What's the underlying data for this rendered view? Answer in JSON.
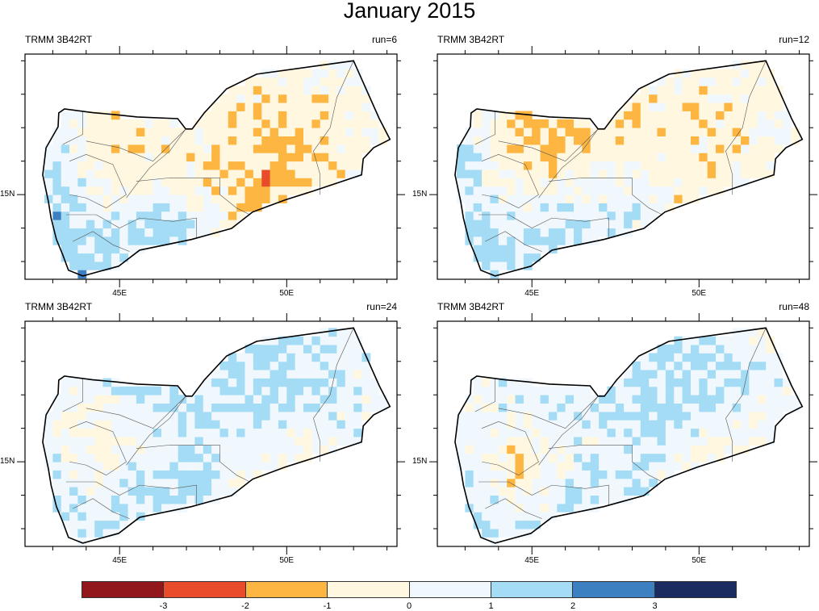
{
  "title": "January 2015",
  "chart_data": {
    "type": "heatmap",
    "title": "January 2015",
    "xaxis": {
      "ticks": [
        "45E",
        "50E"
      ],
      "range_lon": [
        42.17,
        53.3
      ]
    },
    "yaxis": {
      "ticks": [
        "15N"
      ],
      "range_lat": [
        12.47,
        19.2
      ]
    },
    "colorbar": {
      "levels": [
        "-3",
        "-2",
        "-1",
        "0",
        "1",
        "2",
        "3"
      ],
      "level_values": [
        -3,
        -2,
        -1,
        0,
        1,
        2,
        3
      ],
      "colors": [
        "#92171c",
        "#e84c2b",
        "#fdb642",
        "#fff7e0",
        "#f0f8fd",
        "#a5dcf5",
        "#3d80c2",
        "#1b2c60"
      ]
    },
    "grid_lons": [
      42.5,
      43.5,
      44.5,
      45.5,
      46.5,
      47.5,
      48.5,
      49.5,
      50.5,
      51.5,
      52.5
    ],
    "grid_lats": [
      18.5,
      17.5,
      16.5,
      15.5,
      14.5,
      13.5,
      12.5
    ],
    "panels": [
      {
        "left_label": "TRMM 3B42RT",
        "right_label": "run=6",
        "anomaly_grid_1deg": [
          [
            0.3,
            0.3,
            0.2,
            0.0,
            -0.3,
            -0.4,
            -0.4,
            -0.3,
            -0.3,
            0.2,
            0.3
          ],
          [
            0.5,
            0.3,
            -0.6,
            0.1,
            -0.2,
            -0.4,
            -0.6,
            -0.7,
            -0.9,
            -0.6,
            -0.3
          ],
          [
            1.3,
            0.5,
            -0.9,
            -0.8,
            -0.4,
            -0.5,
            -0.8,
            -1.4,
            -1.2,
            -0.7,
            -0.4
          ],
          [
            1.6,
            0.8,
            -0.5,
            -0.6,
            -0.4,
            -0.5,
            -0.9,
            -1.5,
            -1.3,
            -0.5,
            0.2
          ],
          [
            1.6,
            1.4,
            0.2,
            0.9,
            1.1,
            0.5,
            -0.8,
            -1.0,
            -0.5,
            0.0,
            0.0
          ],
          [
            1.6,
            1.6,
            1.3,
            1.1,
            1.4,
            0.6,
            -0.3,
            -0.3,
            0.0,
            0.0,
            0.0
          ],
          [
            1.8,
            1.8,
            1.5,
            1.0,
            0.6,
            0.3,
            0.0,
            0.0,
            0.0,
            0.0,
            0.0
          ]
        ]
      },
      {
        "left_label": "TRMM 3B42RT",
        "right_label": "run=12",
        "anomaly_grid_1deg": [
          [
            0.3,
            0.3,
            0.3,
            0.1,
            -0.3,
            -0.3,
            -0.3,
            -0.3,
            -0.3,
            -0.3,
            -0.3
          ],
          [
            0.4,
            0.2,
            -0.8,
            -1.0,
            -0.9,
            -0.7,
            -0.6,
            -0.6,
            -0.6,
            -0.4,
            -0.3
          ],
          [
            0.9,
            0.4,
            -1.1,
            -1.3,
            -1.4,
            -0.9,
            -0.5,
            -0.5,
            -0.7,
            -0.5,
            -0.2
          ],
          [
            1.2,
            0.7,
            -0.4,
            -0.5,
            0.0,
            0.0,
            0.3,
            -0.6,
            -0.5,
            -0.2,
            0.0
          ],
          [
            1.3,
            1.0,
            0.5,
            0.6,
            0.7,
            0.8,
            0.4,
            -0.8,
            -0.2,
            0.0,
            0.0
          ],
          [
            1.5,
            1.4,
            0.9,
            1.0,
            1.1,
            0.7,
            0.2,
            0.0,
            0.0,
            0.0,
            0.0
          ],
          [
            1.7,
            1.6,
            1.2,
            1.0,
            0.6,
            0.3,
            0.0,
            0.0,
            0.0,
            0.0,
            0.0
          ]
        ]
      },
      {
        "left_label": "TRMM 3B42RT",
        "right_label": "run=24",
        "anomaly_grid_1deg": [
          [
            0.6,
            0.6,
            0.6,
            0.6,
            0.8,
            0.9,
            1.3,
            1.5,
            1.0,
            0.6,
            0.6
          ],
          [
            0.4,
            0.3,
            0.8,
            1.3,
            0.9,
            0.8,
            1.1,
            1.2,
            0.9,
            0.7,
            0.5
          ],
          [
            0.5,
            0.2,
            0.1,
            0.5,
            0.6,
            0.7,
            0.9,
            0.8,
            0.6,
            0.6,
            0.5
          ],
          [
            0.6,
            0.1,
            -0.3,
            0.4,
            0.9,
            0.9,
            0.5,
            0.3,
            -0.2,
            0.3,
            0.4
          ],
          [
            0.8,
            0.5,
            0.1,
            1.0,
            1.1,
            1.2,
            0.2,
            -0.4,
            0.4,
            0.4,
            0.4
          ],
          [
            1.3,
            0.9,
            0.6,
            0.9,
            1.0,
            0.6,
            0.4,
            0.4,
            0.4,
            0.4,
            0.4
          ],
          [
            1.6,
            1.3,
            0.9,
            0.8,
            0.6,
            0.4,
            0.4,
            0.4,
            0.4,
            0.4,
            0.4
          ]
        ]
      },
      {
        "left_label": "TRMM 3B42RT",
        "right_label": "run=48",
        "anomaly_grid_1deg": [
          [
            0.8,
            0.8,
            0.8,
            0.8,
            0.9,
            1.0,
            1.1,
            1.0,
            0.6,
            0.3,
            0.3
          ],
          [
            0.5,
            0.4,
            0.9,
            1.1,
            0.9,
            1.0,
            1.1,
            1.2,
            1.0,
            0.7,
            0.5
          ],
          [
            0.6,
            0.4,
            0.3,
            0.6,
            0.8,
            1.1,
            1.2,
            1.1,
            0.7,
            0.6,
            0.5
          ],
          [
            0.7,
            0.2,
            -0.6,
            0.0,
            0.4,
            0.7,
            0.8,
            0.7,
            -0.5,
            -0.2,
            0.3
          ],
          [
            0.9,
            0.4,
            -0.9,
            0.3,
            0.8,
            1.1,
            0.6,
            0.4,
            0.4,
            0.4,
            0.4
          ],
          [
            1.2,
            0.9,
            0.3,
            0.5,
            0.9,
            0.7,
            0.4,
            0.4,
            0.4,
            0.4,
            0.4
          ],
          [
            1.5,
            1.2,
            0.7,
            0.6,
            0.6,
            0.4,
            0.4,
            0.4,
            0.4,
            0.4,
            0.4
          ]
        ]
      }
    ]
  }
}
